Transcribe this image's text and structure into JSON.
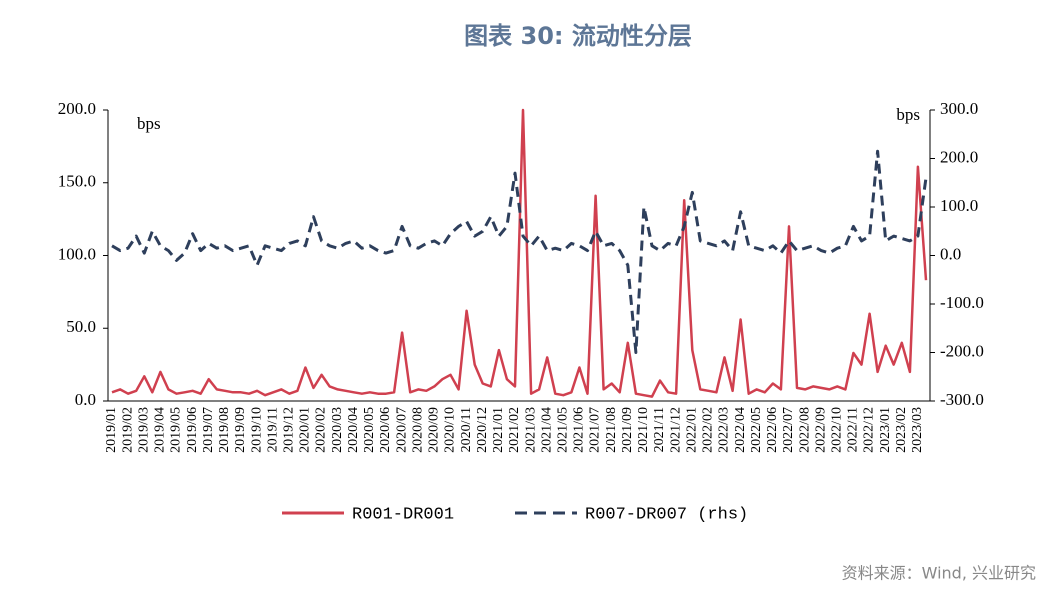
{
  "chart_data": {
    "type": "line",
    "title": "图表 30: 流动性分层",
    "source": "资料来源：Wind, 兴业研究",
    "ylabel": "bps",
    "y2label": "bps",
    "categories": [
      "2019/01",
      null,
      "2019/02",
      null,
      "2019/03",
      null,
      "2019/04",
      null,
      "2019/05",
      null,
      "2019/06",
      null,
      "2019/07",
      null,
      "2019/08",
      null,
      "2019/09",
      null,
      "2019/10",
      null,
      "2019/11",
      null,
      "2019/12",
      null,
      "2020/01",
      null,
      "2020/02",
      null,
      "2020/03",
      null,
      "2020/04",
      null,
      "2020/05",
      null,
      "2020/06",
      null,
      "2020/07",
      null,
      "2020/08",
      null,
      "2020/09",
      null,
      "2020/10",
      null,
      "2020/11",
      null,
      "2020/12",
      null,
      "2021/01",
      null,
      "2021/02",
      null,
      "2021/03",
      null,
      "2021/04",
      null,
      "2021/05",
      null,
      "2021/06",
      null,
      "2021/07",
      null,
      "2021/08",
      null,
      "2021/09",
      null,
      "2021/10",
      null,
      "2021/11",
      null,
      "2021/12",
      null,
      "2022/01",
      null,
      "2022/02",
      null,
      "2022/03",
      null,
      "2022/04",
      null,
      "2022/05",
      null,
      "2022/06",
      null,
      "2022/07",
      null,
      "2022/08",
      null,
      "2022/09",
      null,
      "2022/10",
      null,
      "2022/11",
      null,
      "2022/12",
      null,
      "2023/01",
      null,
      "2023/02",
      null,
      "2023/03",
      null
    ],
    "series": [
      {
        "name": "R001-DR001",
        "color": "#d0404f",
        "dashed": false,
        "values": [
          6,
          8,
          5,
          7,
          17,
          6,
          20,
          8,
          5,
          6,
          7,
          5,
          15,
          8,
          7,
          6,
          6,
          5,
          7,
          4,
          6,
          8,
          5,
          7,
          23,
          9,
          18,
          10,
          8,
          7,
          6,
          5,
          6,
          5,
          5,
          6,
          47,
          6,
          8,
          7,
          10,
          15,
          18,
          8,
          62,
          25,
          12,
          10,
          35,
          15,
          10,
          200,
          5,
          8,
          30,
          5,
          4,
          6,
          23,
          5,
          141,
          8,
          12,
          6,
          40,
          5,
          4,
          3,
          14,
          6,
          5,
          138,
          35,
          8,
          7,
          6,
          30,
          7,
          56,
          5,
          8,
          6,
          12,
          8,
          120,
          9,
          8,
          10,
          9,
          8,
          10,
          8,
          33,
          25,
          60,
          20,
          38,
          25,
          40,
          20,
          161,
          83
        ]
      },
      {
        "name": "R007-DR007 (rhs)",
        "color": "#2e3f5c",
        "dashed": true,
        "axis": "y2",
        "values": [
          20,
          10,
          15,
          40,
          5,
          50,
          20,
          10,
          -10,
          5,
          45,
          10,
          25,
          15,
          20,
          10,
          15,
          20,
          -20,
          20,
          15,
          10,
          25,
          30,
          20,
          80,
          30,
          20,
          15,
          25,
          30,
          15,
          20,
          10,
          5,
          10,
          60,
          20,
          15,
          25,
          30,
          20,
          45,
          60,
          70,
          40,
          50,
          80,
          40,
          60,
          170,
          40,
          20,
          40,
          10,
          15,
          10,
          25,
          20,
          10,
          50,
          20,
          25,
          10,
          -20,
          -200,
          100,
          20,
          10,
          25,
          20,
          60,
          130,
          30,
          25,
          20,
          30,
          10,
          90,
          20,
          15,
          10,
          20,
          5,
          30,
          10,
          15,
          20,
          10,
          5,
          15,
          20,
          60,
          30,
          40,
          215,
          30,
          40,
          35,
          30,
          40,
          160
        ]
      }
    ],
    "ylim": [
      0,
      200
    ],
    "yticks": [
      {
        "value": 0,
        "label": "0.0"
      },
      {
        "value": 50,
        "label": "50.0"
      },
      {
        "value": 100,
        "label": "100.0"
      },
      {
        "value": 150,
        "label": "150.0"
      },
      {
        "value": 200,
        "label": "200.0"
      }
    ],
    "y2lim": [
      -300,
      300
    ],
    "y2ticks": [
      {
        "value": -300,
        "label": "-300.0"
      },
      {
        "value": -200,
        "label": "-200.0"
      },
      {
        "value": -100,
        "label": "-100.0"
      },
      {
        "value": 0,
        "label": "0.0"
      },
      {
        "value": 100,
        "label": "100.0"
      },
      {
        "value": 200,
        "label": "200.0"
      },
      {
        "value": 300,
        "label": "300.0"
      }
    ],
    "grid": false,
    "legend": "bottom"
  }
}
